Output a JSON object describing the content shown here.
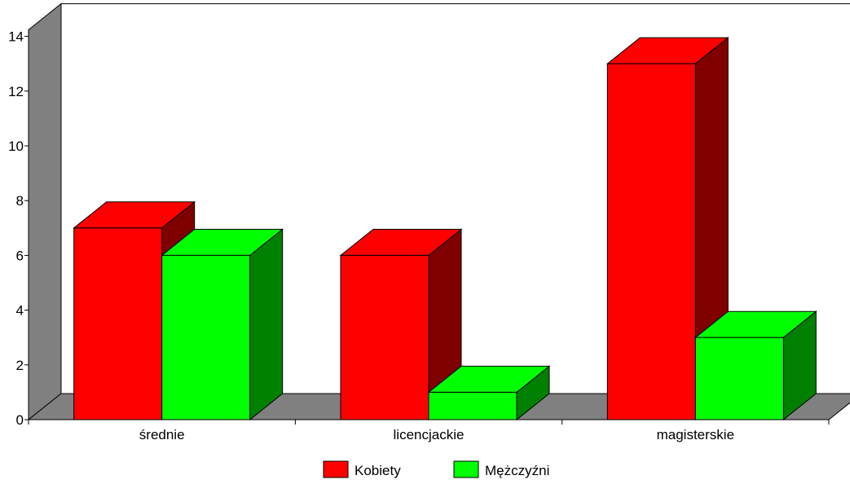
{
  "chart_data": {
    "type": "bar",
    "style": "3d-clustered-column",
    "categories": [
      "średnie",
      "licencjackie",
      "magisterskie"
    ],
    "series": [
      {
        "name": "Kobiety",
        "values": [
          7,
          6,
          13
        ],
        "color": "#ff0000",
        "side_color": "#800000"
      },
      {
        "name": "Mężczyźni",
        "values": [
          6,
          1,
          3
        ],
        "color": "#00ff00",
        "side_color": "#008000"
      }
    ],
    "ylim": [
      0,
      14
    ],
    "yticks": [
      0,
      2,
      4,
      6,
      8,
      10,
      12,
      14
    ],
    "grid": false,
    "legend_position": "bottom",
    "wall_color": "#808080"
  }
}
